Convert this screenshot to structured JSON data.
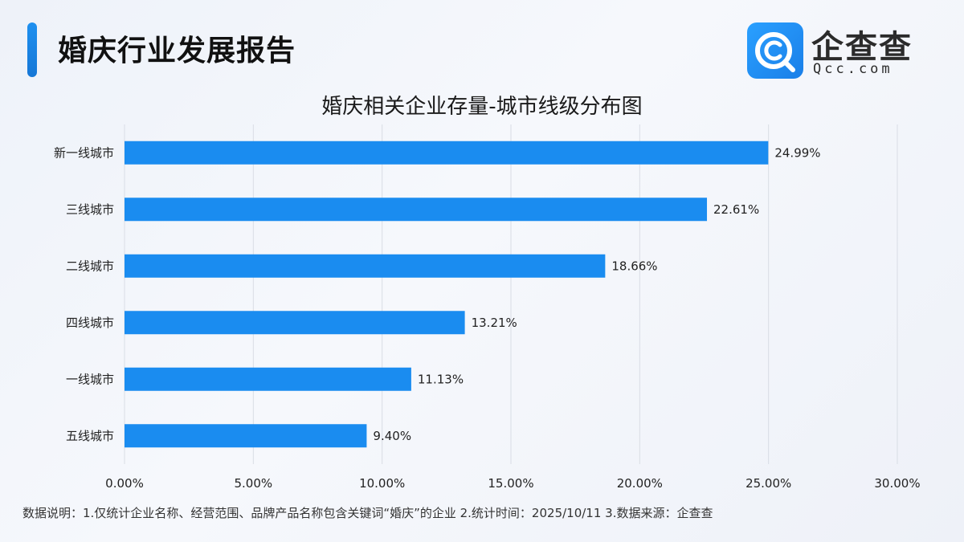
{
  "header": {
    "title": "婚庆行业发展报告"
  },
  "logo": {
    "name": "企查查",
    "domain": "Qcc.com",
    "icon": "qcc-magnifier-logo"
  },
  "colors": {
    "bar": "#1a8cf0",
    "accent": "#1e88ef",
    "grid": "#d9dde5"
  },
  "chart_data": {
    "type": "bar",
    "orientation": "horizontal",
    "title": "婚庆相关企业存量-城市线级分布图",
    "categories": [
      "新一线城市",
      "三线城市",
      "二线城市",
      "四线城市",
      "一线城市",
      "五线城市"
    ],
    "values": [
      24.99,
      22.61,
      18.66,
      13.21,
      11.13,
      9.4
    ],
    "data_labels": [
      "24.99%",
      "22.61%",
      "18.66%",
      "13.21%",
      "11.13%",
      "9.40%"
    ],
    "xlim": [
      0,
      30
    ],
    "xticks": [
      0,
      5,
      10,
      15,
      20,
      25,
      30
    ],
    "xtick_labels": [
      "0.00%",
      "5.00%",
      "10.00%",
      "15.00%",
      "20.00%",
      "25.00%",
      "30.00%"
    ],
    "xlabel": "",
    "ylabel": "",
    "grid": "vertical",
    "legend": "none"
  },
  "footnote": "数据说明：1.仅统计企业名称、经营范围、品牌产品名称包含关键词“婚庆”的企业  2.统计时间：2025/10/11   3.数据来源：企查查"
}
